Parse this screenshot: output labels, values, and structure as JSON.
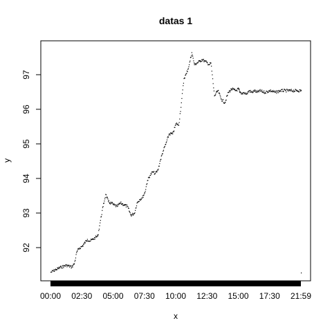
{
  "chart_data": {
    "type": "scatter",
    "title": "datas 1",
    "xlabel": "x",
    "ylabel": "y",
    "x_tick_labels": [
      "00:00",
      "02:30",
      "05:00",
      "07:30",
      "10:00",
      "12:30",
      "15:00",
      "17:30",
      "21:59"
    ],
    "y_ticks": [
      92,
      93,
      94,
      95,
      96,
      97
    ],
    "ylim": [
      91.04,
      97.98
    ],
    "xlim": [
      "00:00",
      "23:59"
    ],
    "grid": false,
    "series": [
      {
        "x": [
          "00:00",
          "00:30",
          "01:00",
          "01:30",
          "02:00",
          "02:15",
          "02:30",
          "02:45",
          "03:00",
          "03:30",
          "03:45",
          "04:00",
          "04:15",
          "04:30",
          "04:45",
          "05:00",
          "05:15",
          "05:30",
          "05:40",
          "05:50",
          "06:00",
          "06:20",
          "06:40",
          "07:00",
          "07:20",
          "07:40",
          "08:00",
          "08:15",
          "08:30",
          "08:45",
          "09:00",
          "09:15",
          "09:30",
          "09:45",
          "10:00",
          "10:15",
          "10:30",
          "10:45",
          "11:00",
          "11:20",
          "11:40",
          "12:00",
          "12:15",
          "12:30",
          "12:45",
          "13:00",
          "13:15",
          "13:30",
          "13:45",
          "14:00",
          "14:15",
          "14:30",
          "14:45",
          "15:00",
          "15:10",
          "15:20",
          "15:40",
          "16:00",
          "16:20",
          "16:40",
          "17:00",
          "17:20",
          "17:40",
          "18:00",
          "18:05",
          "18:15",
          "18:30",
          "18:45",
          "19:00",
          "19:15",
          "19:30",
          "19:45",
          "20:00",
          "20:30",
          "21:00",
          "21:30",
          "22:00",
          "22:30",
          "23:00",
          "23:30",
          "23:59"
        ],
        "y": [
          91.3,
          91.38,
          91.45,
          91.5,
          91.45,
          91.55,
          91.9,
          92.0,
          92.05,
          92.25,
          92.2,
          92.25,
          92.3,
          92.35,
          92.8,
          93.2,
          93.55,
          93.35,
          93.3,
          93.3,
          93.25,
          93.2,
          93.3,
          93.25,
          93.2,
          92.95,
          93.0,
          93.3,
          93.4,
          93.45,
          93.6,
          93.95,
          94.1,
          94.2,
          94.15,
          94.25,
          94.55,
          94.8,
          95.0,
          95.3,
          95.3,
          95.6,
          95.55,
          96.2,
          96.9,
          97.05,
          97.3,
          97.65,
          97.3,
          97.35,
          97.4,
          97.45,
          97.4,
          97.35,
          97.3,
          97.35,
          96.4,
          96.55,
          96.3,
          96.2,
          96.5,
          96.6,
          96.55,
          96.6,
          96.5,
          96.45,
          96.5,
          96.45,
          96.55,
          96.5,
          96.55,
          96.5,
          96.55,
          96.5,
          96.55,
          96.5,
          96.55,
          96.55,
          96.55,
          96.55,
          96.55
        ]
      },
      {
        "x": [
          "23:59"
        ],
        "y": [
          91.28
        ]
      }
    ]
  }
}
